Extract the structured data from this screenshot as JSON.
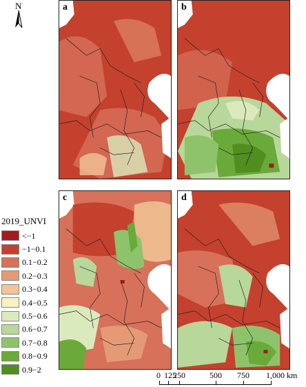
{
  "north_arrow": {
    "label": "N",
    "icon": "north-arrow-icon"
  },
  "panels": [
    {
      "letter": "a"
    },
    {
      "letter": "b"
    },
    {
      "letter": "c"
    },
    {
      "letter": "d"
    }
  ],
  "legend": {
    "title": "2019_UNVI",
    "items": [
      {
        "label": "<−1",
        "color": "#a31b1d"
      },
      {
        "label": "−1−0.1",
        "color": "#c4412e"
      },
      {
        "label": "0.1−0.2",
        "color": "#d7715a"
      },
      {
        "label": "0.2−0.3",
        "color": "#e59a76"
      },
      {
        "label": "0.3−0.4",
        "color": "#f2c496"
      },
      {
        "label": "0.4−0.5",
        "color": "#f8f1c2"
      },
      {
        "label": "0.5−0.6",
        "color": "#dbeabd"
      },
      {
        "label": "0.6−0.7",
        "color": "#b8d79a"
      },
      {
        "label": "0.7−0.8",
        "color": "#8ec36c"
      },
      {
        "label": "0.8−0.9",
        "color": "#6aaa3a"
      },
      {
        "label": "0.9−2",
        "color": "#4f8e1f"
      }
    ]
  },
  "scale_bar": {
    "labels": [
      "0",
      "125",
      "250",
      "500",
      "750",
      "1,000 km"
    ]
  }
}
